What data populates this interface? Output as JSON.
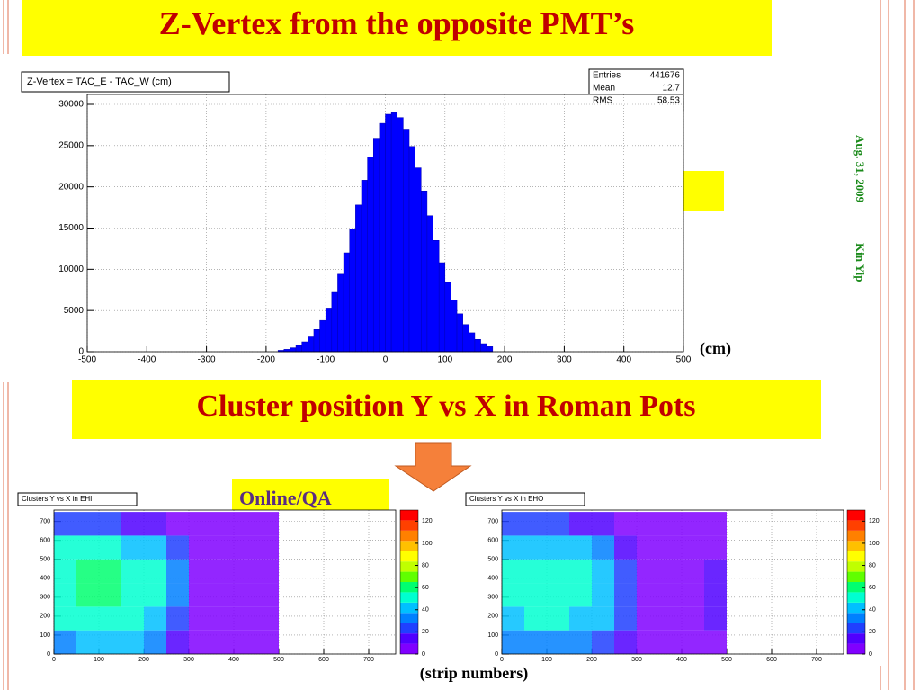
{
  "slide": {
    "title": "Z-Vertex from the opposite PMT’s",
    "section_title": "Cluster position Y vs X in Roman Pots",
    "tag": "Online/QA",
    "hist_unit": "(cm)",
    "strip_unit": "(strip numbers)",
    "date": "Aug. 31, 2009",
    "author": "Kin Yip"
  },
  "chart_data": [
    {
      "type": "histogram",
      "title": "Z-Vertex = TAC_E - TAC_W (cm)",
      "color": "#0000ff",
      "bins": [
        -180,
        -170,
        -160,
        -150,
        -140,
        -130,
        -120,
        -110,
        -100,
        -90,
        -80,
        -70,
        -60,
        -50,
        -40,
        -30,
        -20,
        -10,
        0,
        10,
        20,
        30,
        40,
        50,
        60,
        70,
        80,
        90,
        100,
        110,
        120,
        130,
        140,
        150,
        160,
        170,
        180
      ],
      "values": [
        170,
        290,
        480,
        770,
        1200,
        1800,
        2700,
        3800,
        5300,
        7200,
        9400,
        12000,
        14900,
        17800,
        20800,
        23600,
        25900,
        27700,
        28800,
        29000,
        28400,
        27000,
        24900,
        22300,
        19500,
        16500,
        13500,
        10800,
        8400,
        6300,
        4600,
        3300,
        2300,
        1500,
        980,
        620
      ],
      "stats": [
        {
          "label": "Entries",
          "value": 441676
        },
        {
          "label": "Mean",
          "value": 12.7
        },
        {
          "label": "RMS",
          "value": 58.53
        }
      ],
      "xlim": [
        -500,
        500
      ],
      "xticks": [
        -500,
        -400,
        -300,
        -200,
        -100,
        0,
        100,
        200,
        300,
        400,
        500
      ],
      "ylim": [
        0,
        31200
      ],
      "yticks": [
        0,
        5000,
        10000,
        15000,
        20000,
        25000,
        30000
      ],
      "grid": true
    },
    {
      "type": "heatmap",
      "title": "Clusters Y vs X in EHI",
      "x_edges": [
        0,
        50,
        100,
        150,
        200,
        250,
        300,
        350,
        400,
        450,
        500,
        550,
        600,
        650,
        700,
        750
      ],
      "y_edges": [
        0,
        125,
        250,
        375,
        500,
        625,
        750
      ],
      "z": [
        [
          35,
          40,
          40,
          38,
          35,
          15,
          6,
          3,
          2,
          2,
          0,
          0,
          0,
          0,
          0
        ],
        [
          50,
          55,
          55,
          50,
          45,
          25,
          8,
          3,
          3,
          2,
          0,
          0,
          0,
          0,
          0
        ],
        [
          55,
          60,
          58,
          55,
          50,
          30,
          9,
          3,
          3,
          2,
          0,
          0,
          0,
          0,
          0
        ],
        [
          55,
          60,
          58,
          55,
          50,
          30,
          9,
          3,
          3,
          2,
          0,
          0,
          0,
          0,
          0
        ],
        [
          50,
          50,
          48,
          45,
          40,
          22,
          8,
          3,
          2,
          2,
          0,
          0,
          0,
          0,
          0
        ],
        [
          25,
          25,
          22,
          18,
          15,
          8,
          4,
          2,
          2,
          1,
          0,
          0,
          0,
          0,
          0
        ]
      ],
      "zlim": [
        0,
        130
      ],
      "zticks": [
        0,
        20,
        40,
        60,
        80,
        100,
        120
      ],
      "colorscale": [
        "#8000ff",
        "#5000ff",
        "#2040ff",
        "#0080ff",
        "#00c0ff",
        "#00ffd0",
        "#00ff70",
        "#60ff00",
        "#c0ff00",
        "#ffff00",
        "#ffc000",
        "#ff8000",
        "#ff4000",
        "#ff0000"
      ],
      "xlim": [
        0,
        760
      ],
      "xticks": [
        0,
        100,
        200,
        300,
        400,
        500,
        600,
        700
      ],
      "ylim": [
        0,
        760
      ],
      "yticks": [
        0,
        100,
        200,
        300,
        400,
        500,
        600,
        700
      ],
      "grid": true
    },
    {
      "type": "heatmap",
      "title": "Clusters Y vs X in EHO",
      "x_edges": [
        0,
        50,
        100,
        150,
        200,
        250,
        300,
        350,
        400,
        450,
        500,
        550,
        600,
        650,
        700,
        750
      ],
      "y_edges": [
        0,
        125,
        250,
        375,
        500,
        625,
        750
      ],
      "z": [
        [
          30,
          35,
          35,
          30,
          25,
          12,
          5,
          3,
          2,
          8,
          0,
          0,
          0,
          0,
          0
        ],
        [
          45,
          50,
          50,
          45,
          40,
          20,
          7,
          3,
          3,
          10,
          0,
          0,
          0,
          0,
          0
        ],
        [
          50,
          55,
          55,
          50,
          45,
          25,
          8,
          3,
          3,
          10,
          0,
          0,
          0,
          0,
          0
        ],
        [
          50,
          55,
          55,
          50,
          45,
          25,
          8,
          3,
          3,
          10,
          0,
          0,
          0,
          0,
          0
        ],
        [
          45,
          45,
          42,
          40,
          35,
          18,
          7,
          3,
          2,
          9,
          0,
          0,
          0,
          0,
          0
        ],
        [
          22,
          22,
          20,
          16,
          12,
          7,
          4,
          2,
          2,
          5,
          0,
          0,
          0,
          0,
          0
        ]
      ],
      "zlim": [
        0,
        130
      ],
      "zticks": [
        0,
        20,
        40,
        60,
        80,
        100,
        120
      ],
      "colorscale": [
        "#8000ff",
        "#5000ff",
        "#2040ff",
        "#0080ff",
        "#00c0ff",
        "#00ffd0",
        "#00ff70",
        "#60ff00",
        "#c0ff00",
        "#ffff00",
        "#ffc000",
        "#ff8000",
        "#ff4000",
        "#ff0000"
      ],
      "xlim": [
        0,
        760
      ],
      "xticks": [
        0,
        100,
        200,
        300,
        400,
        500,
        600,
        700
      ],
      "ylim": [
        0,
        760
      ],
      "yticks": [
        0,
        100,
        200,
        300,
        400,
        500,
        600,
        700
      ],
      "grid": true
    }
  ]
}
